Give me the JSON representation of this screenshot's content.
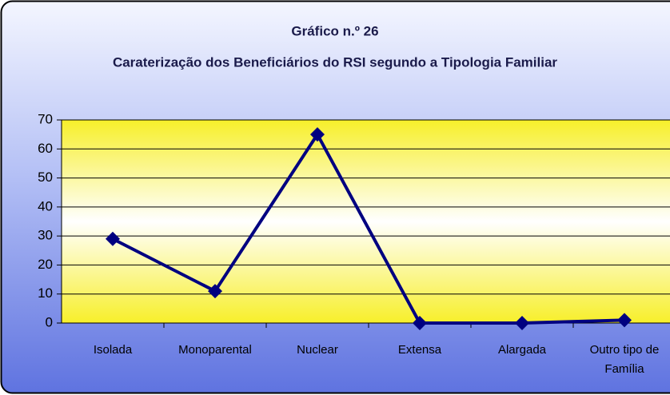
{
  "chart_data": {
    "type": "line",
    "title": "Gráfico n.º 26",
    "subtitle": "Caraterização dos Beneficiários do RSI segundo a Tipologia Familiar",
    "categories": [
      "Isolada",
      "Monoparental",
      "Nuclear",
      "Extensa",
      "Alargada",
      "Outro tipo de Família"
    ],
    "series": [
      {
        "color": "#000080",
        "values": [
          29,
          11,
          65,
          0,
          0,
          1
        ]
      }
    ],
    "ylim": [
      0,
      70
    ],
    "yticks": [
      0,
      10,
      20,
      30,
      40,
      50,
      60,
      70
    ],
    "grid": true
  }
}
